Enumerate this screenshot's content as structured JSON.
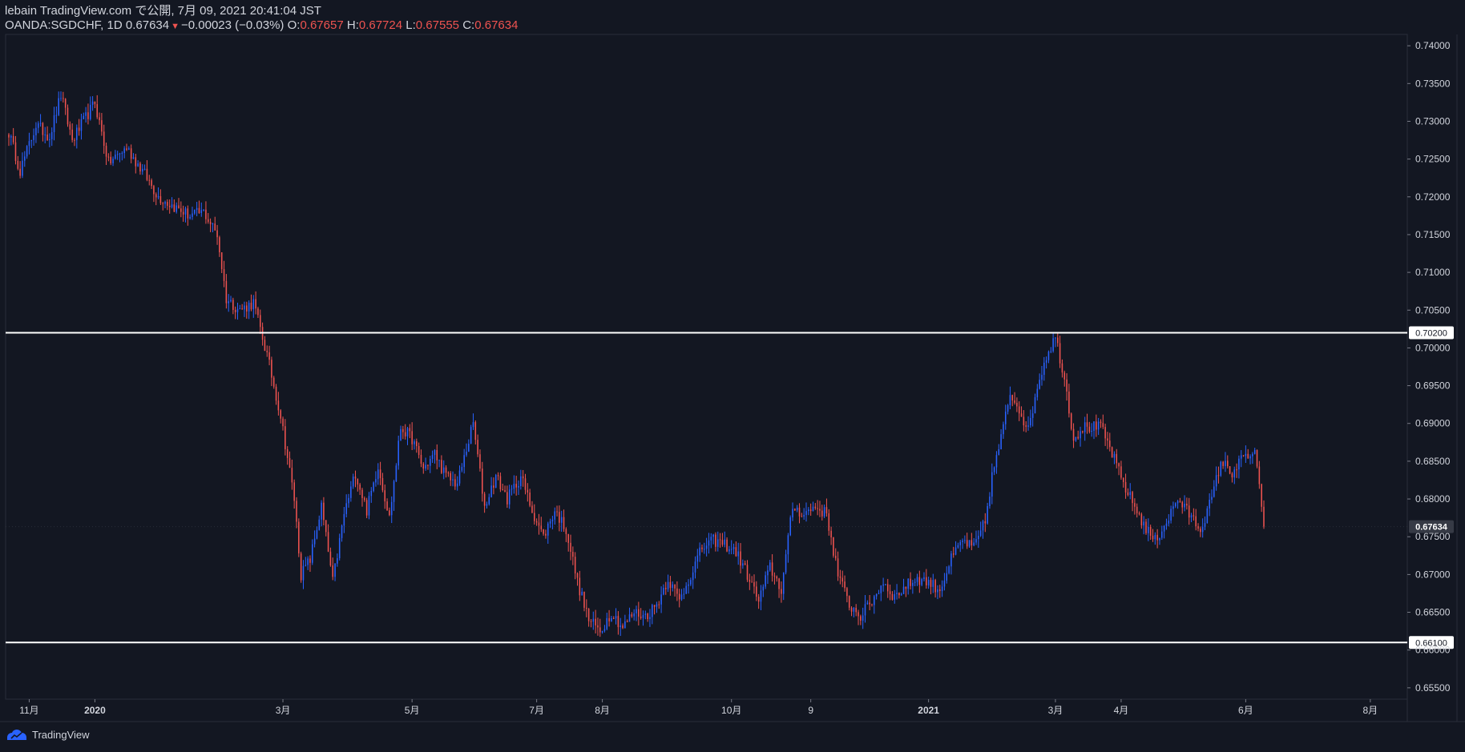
{
  "header": {
    "published_line": "lebain TradingView.com で公開, 7月 09, 2021 20:41:04 JST",
    "symbol": "OANDA:SGDCHF, 1D",
    "last_price": "0.67634",
    "change": "−0.00023 (−0.03%)",
    "open_label": "O:",
    "open": "0.67657",
    "high_label": "H:",
    "high": "0.67724",
    "low_label": "L:",
    "low": "0.67555",
    "close_label": "C:",
    "close": "0.67634"
  },
  "footer": {
    "brand": "TradingView"
  },
  "colors": {
    "background": "#131722",
    "up": "#2962ff",
    "down": "#ef5350",
    "text": "#d1d4dc",
    "line": "#ffffff"
  },
  "chart_data": {
    "type": "candlestick",
    "y_ticks": [
      "0.74000",
      "0.73500",
      "0.73000",
      "0.72500",
      "0.72000",
      "0.71500",
      "0.71000",
      "0.70500",
      "0.70000",
      "0.69500",
      "0.69000",
      "0.68500",
      "0.68000",
      "0.67500",
      "0.67000",
      "0.66500",
      "0.66000",
      "0.65500"
    ],
    "x_ticks": [
      "11月",
      "2020",
      "3月",
      "5月",
      "7月",
      "8月",
      "10月",
      "9",
      "2021",
      "3月",
      "4月",
      "6月",
      "8月"
    ],
    "horizontal_lines": [
      {
        "value": 0.702,
        "label": "0.70200"
      },
      {
        "value": 0.661,
        "label": "0.66100"
      }
    ],
    "last_price_label": "0.67634",
    "last_price": 0.67634,
    "ylim": [
      0.6535,
      0.7415
    ],
    "close_path": [
      {
        "t": 0,
        "v": 0.7285
      },
      {
        "t": 5,
        "v": 0.7235
      },
      {
        "t": 12,
        "v": 0.7295
      },
      {
        "t": 18,
        "v": 0.728
      },
      {
        "t": 23,
        "v": 0.7335
      },
      {
        "t": 28,
        "v": 0.7275
      },
      {
        "t": 38,
        "v": 0.7325
      },
      {
        "t": 44,
        "v": 0.7245
      },
      {
        "t": 52,
        "v": 0.7265
      },
      {
        "t": 60,
        "v": 0.723
      },
      {
        "t": 66,
        "v": 0.72
      },
      {
        "t": 74,
        "v": 0.7185
      },
      {
        "t": 80,
        "v": 0.7175
      },
      {
        "t": 86,
        "v": 0.718
      },
      {
        "t": 92,
        "v": 0.715
      },
      {
        "t": 96,
        "v": 0.7065
      },
      {
        "t": 102,
        "v": 0.705
      },
      {
        "t": 108,
        "v": 0.706
      },
      {
        "t": 114,
        "v": 0.699
      },
      {
        "t": 120,
        "v": 0.691
      },
      {
        "t": 126,
        "v": 0.68
      },
      {
        "t": 129,
        "v": 0.67
      },
      {
        "t": 133,
        "v": 0.672
      },
      {
        "t": 138,
        "v": 0.679
      },
      {
        "t": 143,
        "v": 0.669
      },
      {
        "t": 148,
        "v": 0.678
      },
      {
        "t": 153,
        "v": 0.6835
      },
      {
        "t": 158,
        "v": 0.6785
      },
      {
        "t": 163,
        "v": 0.6845
      },
      {
        "t": 168,
        "v": 0.6775
      },
      {
        "t": 173,
        "v": 0.6895
      },
      {
        "t": 178,
        "v": 0.688
      },
      {
        "t": 183,
        "v": 0.684
      },
      {
        "t": 188,
        "v": 0.686
      },
      {
        "t": 193,
        "v": 0.683
      },
      {
        "t": 198,
        "v": 0.682
      },
      {
        "t": 205,
        "v": 0.69
      },
      {
        "t": 210,
        "v": 0.679
      },
      {
        "t": 215,
        "v": 0.683
      },
      {
        "t": 220,
        "v": 0.68
      },
      {
        "t": 226,
        "v": 0.683
      },
      {
        "t": 231,
        "v": 0.6785
      },
      {
        "t": 236,
        "v": 0.675
      },
      {
        "t": 241,
        "v": 0.6785
      },
      {
        "t": 246,
        "v": 0.676
      },
      {
        "t": 251,
        "v": 0.669
      },
      {
        "t": 256,
        "v": 0.664
      },
      {
        "t": 261,
        "v": 0.6625
      },
      {
        "t": 266,
        "v": 0.665
      },
      {
        "t": 271,
        "v": 0.663
      },
      {
        "t": 276,
        "v": 0.665
      },
      {
        "t": 281,
        "v": 0.6645
      },
      {
        "t": 286,
        "v": 0.666
      },
      {
        "t": 291,
        "v": 0.6695
      },
      {
        "t": 296,
        "v": 0.6665
      },
      {
        "t": 301,
        "v": 0.67
      },
      {
        "t": 306,
        "v": 0.6735
      },
      {
        "t": 311,
        "v": 0.6745
      },
      {
        "t": 316,
        "v": 0.674
      },
      {
        "t": 321,
        "v": 0.673
      },
      {
        "t": 326,
        "v": 0.67
      },
      {
        "t": 331,
        "v": 0.6665
      },
      {
        "t": 336,
        "v": 0.671
      },
      {
        "t": 341,
        "v": 0.668
      },
      {
        "t": 346,
        "v": 0.679
      },
      {
        "t": 351,
        "v": 0.678
      },
      {
        "t": 356,
        "v": 0.679
      },
      {
        "t": 361,
        "v": 0.678
      },
      {
        "t": 366,
        "v": 0.67
      },
      {
        "t": 371,
        "v": 0.666
      },
      {
        "t": 376,
        "v": 0.6645
      },
      {
        "t": 381,
        "v": 0.6665
      },
      {
        "t": 386,
        "v": 0.669
      },
      {
        "t": 391,
        "v": 0.667
      },
      {
        "t": 396,
        "v": 0.6685
      },
      {
        "t": 401,
        "v": 0.6695
      },
      {
        "t": 406,
        "v": 0.669
      },
      {
        "t": 411,
        "v": 0.668
      },
      {
        "t": 416,
        "v": 0.672
      },
      {
        "t": 421,
        "v": 0.6745
      },
      {
        "t": 426,
        "v": 0.6735
      },
      {
        "t": 431,
        "v": 0.677
      },
      {
        "t": 434,
        "v": 0.683
      },
      {
        "t": 438,
        "v": 0.688
      },
      {
        "t": 442,
        "v": 0.694
      },
      {
        "t": 446,
        "v": 0.692
      },
      {
        "t": 450,
        "v": 0.689
      },
      {
        "t": 454,
        "v": 0.695
      },
      {
        "t": 458,
        "v": 0.699
      },
      {
        "t": 462,
        "v": 0.7015
      },
      {
        "t": 466,
        "v": 0.696
      },
      {
        "t": 470,
        "v": 0.688
      },
      {
        "t": 474,
        "v": 0.6895
      },
      {
        "t": 478,
        "v": 0.6895
      },
      {
        "t": 482,
        "v": 0.6895
      },
      {
        "t": 487,
        "v": 0.686
      },
      {
        "t": 492,
        "v": 0.682
      },
      {
        "t": 497,
        "v": 0.679
      },
      {
        "t": 502,
        "v": 0.676
      },
      {
        "t": 506,
        "v": 0.6745
      },
      {
        "t": 511,
        "v": 0.677
      },
      {
        "t": 516,
        "v": 0.68
      },
      {
        "t": 521,
        "v": 0.678
      },
      {
        "t": 526,
        "v": 0.676
      },
      {
        "t": 531,
        "v": 0.68
      },
      {
        "t": 535,
        "v": 0.685
      },
      {
        "t": 540,
        "v": 0.6835
      },
      {
        "t": 545,
        "v": 0.6855
      },
      {
        "t": 550,
        "v": 0.686
      },
      {
        "t": 554,
        "v": 0.6765
      }
    ],
    "x_tick_positions_t": [
      {
        "label": "11月",
        "t": 9
      },
      {
        "label": "2020",
        "t": 38
      },
      {
        "label": "3月",
        "t": 121
      },
      {
        "label": "5月",
        "t": 178
      },
      {
        "label": "7月",
        "t": 233
      },
      {
        "label": "8月",
        "t": 262
      },
      {
        "label": "10月",
        "t": 319
      },
      {
        "label": "9",
        "t": 354
      },
      {
        "label": "2021",
        "t": 406
      },
      {
        "label": "3月",
        "t": 462
      },
      {
        "label": "4月",
        "t": 491
      },
      {
        "label": "6月",
        "t": 546
      },
      {
        "label": "8月",
        "t": 601
      }
    ],
    "t_max": 648
  }
}
